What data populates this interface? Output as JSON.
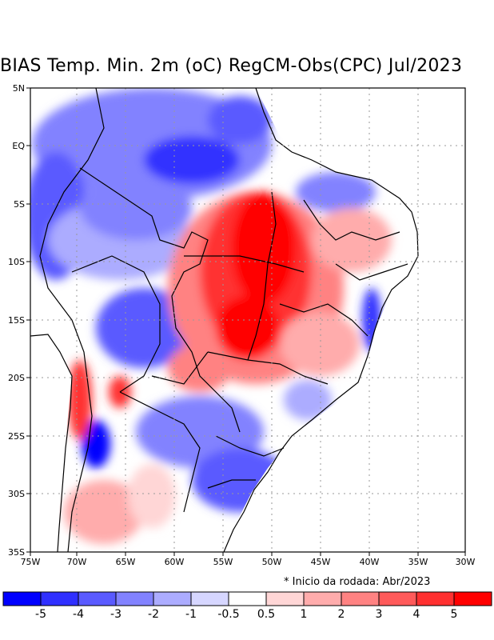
{
  "title": "BIAS Temp. Min. 2m (oC) RegCM-Obs(CPC) Jul/2023",
  "note": "* Inicio da rodada: Abr/2023",
  "lon_labels": [
    "75W",
    "70W",
    "65W",
    "60W",
    "55W",
    "50W",
    "45W",
    "40W",
    "35W",
    "30W"
  ],
  "lat_labels": [
    "5N",
    "EQ",
    "5S",
    "10S",
    "15S",
    "20S",
    "25S",
    "30S",
    "35S"
  ],
  "colorbar": {
    "colors": [
      "#0000ff",
      "#3030ff",
      "#5a5aff",
      "#8282ff",
      "#acacff",
      "#d6d6ff",
      "#ffffff",
      "#ffd6d6",
      "#ffacac",
      "#ff8282",
      "#ff5a5a",
      "#ff3030",
      "#ff0000"
    ],
    "labels": [
      "-5",
      "-4",
      "-3",
      "-2",
      "-1",
      "-0.5",
      "0.5",
      "1",
      "2",
      "3",
      "4",
      "5"
    ]
  }
}
